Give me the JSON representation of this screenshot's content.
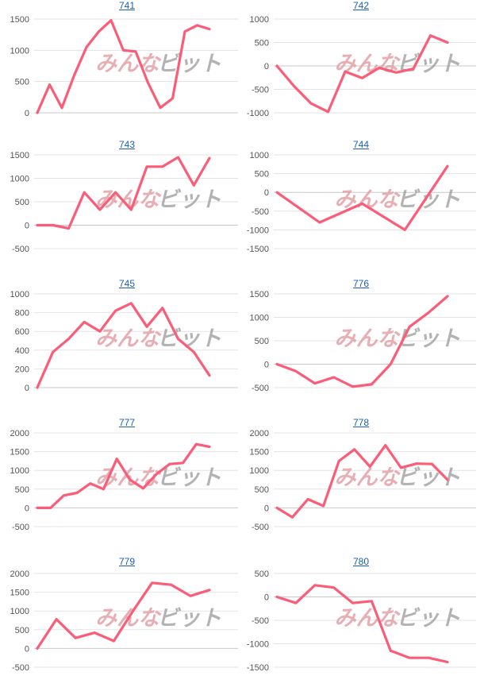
{
  "watermark": {
    "part1": "みんな",
    "part2": "ビット"
  },
  "colors": {
    "line": "#fb5c77",
    "title": "#1a5fb4"
  },
  "chart_data": [
    {
      "type": "line",
      "title": "741",
      "ylim": [
        0,
        1500
      ],
      "yticks": [
        0,
        500,
        1000,
        1500
      ],
      "series": [
        {
          "values": [
            0,
            450,
            80,
            600,
            1050,
            1300,
            1480,
            1000,
            980,
            480,
            80,
            230,
            1300,
            1400,
            1340
          ]
        }
      ]
    },
    {
      "type": "line",
      "title": "742",
      "ylim": [
        -1000,
        1000
      ],
      "yticks": [
        -1000,
        -500,
        0,
        500,
        1000
      ],
      "series": [
        {
          "values": [
            0,
            -430,
            -800,
            -980,
            -120,
            -260,
            -40,
            -140,
            -60,
            650,
            500
          ]
        }
      ]
    },
    {
      "type": "line",
      "title": "743",
      "ylim": [
        -500,
        1500
      ],
      "yticks": [
        -500,
        0,
        500,
        1000,
        1500
      ],
      "series": [
        {
          "values": [
            0,
            0,
            -70,
            700,
            330,
            700,
            330,
            1250,
            1250,
            1450,
            850,
            1430
          ]
        }
      ]
    },
    {
      "type": "line",
      "title": "744",
      "ylim": [
        -1500,
        1000
      ],
      "yticks": [
        -1500,
        -1000,
        -500,
        0,
        500,
        1000
      ],
      "series": [
        {
          "values": [
            0,
            -800,
            -300,
            -1000,
            700
          ]
        }
      ]
    },
    {
      "type": "line",
      "title": "745",
      "ylim": [
        0,
        1000
      ],
      "yticks": [
        0,
        200,
        400,
        600,
        800,
        1000
      ],
      "series": [
        {
          "values": [
            0,
            380,
            520,
            700,
            600,
            820,
            900,
            650,
            850,
            520,
            380,
            130
          ]
        }
      ]
    },
    {
      "type": "line",
      "title": "776",
      "ylim": [
        -500,
        1500
      ],
      "yticks": [
        -500,
        0,
        500,
        1000,
        1500
      ],
      "series": [
        {
          "values": [
            0,
            -150,
            -410,
            -280,
            -480,
            -430,
            0,
            800,
            1100,
            1450
          ]
        }
      ]
    },
    {
      "type": "line",
      "title": "777",
      "ylim": [
        -500,
        2000
      ],
      "yticks": [
        -500,
        0,
        500,
        1000,
        1500,
        2000
      ],
      "series": [
        {
          "values": [
            0,
            0,
            330,
            400,
            650,
            500,
            1310,
            750,
            520,
            900,
            1170,
            1200,
            1700,
            1630
          ]
        }
      ]
    },
    {
      "type": "line",
      "title": "778",
      "ylim": [
        -500,
        2000
      ],
      "yticks": [
        -500,
        0,
        500,
        1000,
        1500,
        2000
      ],
      "series": [
        {
          "values": [
            0,
            -250,
            230,
            50,
            1250,
            1560,
            1100,
            1670,
            1070,
            1180,
            1170,
            750
          ]
        }
      ]
    },
    {
      "type": "line",
      "title": "779",
      "ylim": [
        -500,
        2000
      ],
      "yticks": [
        -500,
        0,
        500,
        1000,
        1500,
        2000
      ],
      "series": [
        {
          "values": [
            0,
            780,
            280,
            420,
            200,
            1000,
            1750,
            1700,
            1400,
            1560
          ]
        }
      ]
    },
    {
      "type": "line",
      "title": "780",
      "ylim": [
        -1500,
        500
      ],
      "yticks": [
        -1500,
        -1000,
        -500,
        0,
        500
      ],
      "series": [
        {
          "values": [
            0,
            -130,
            250,
            200,
            -130,
            -90,
            -1150,
            -1300,
            -1300,
            -1390
          ]
        }
      ]
    }
  ]
}
